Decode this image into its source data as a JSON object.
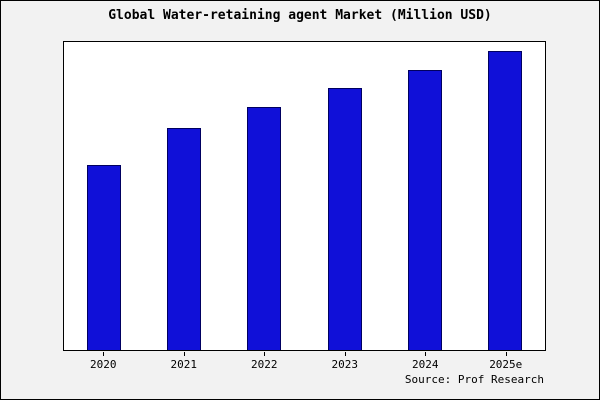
{
  "chart_data": {
    "type": "bar",
    "title": "Global Water-retaining agent Market (Million USD)",
    "categories": [
      "2020",
      "2021",
      "2022",
      "2023",
      "2024",
      "2025e"
    ],
    "values": [
      60,
      72,
      79,
      85,
      91,
      97
    ],
    "xlabel": "",
    "ylabel": "",
    "ylim": [
      0,
      100
    ],
    "grid": false,
    "legend": false,
    "bar_color": "#1010d8",
    "bar_edge_color": "#000060",
    "plot_background": "#ffffff",
    "outer_background": "#f2f2f2"
  },
  "source": {
    "label": "Source: Prof Research"
  }
}
